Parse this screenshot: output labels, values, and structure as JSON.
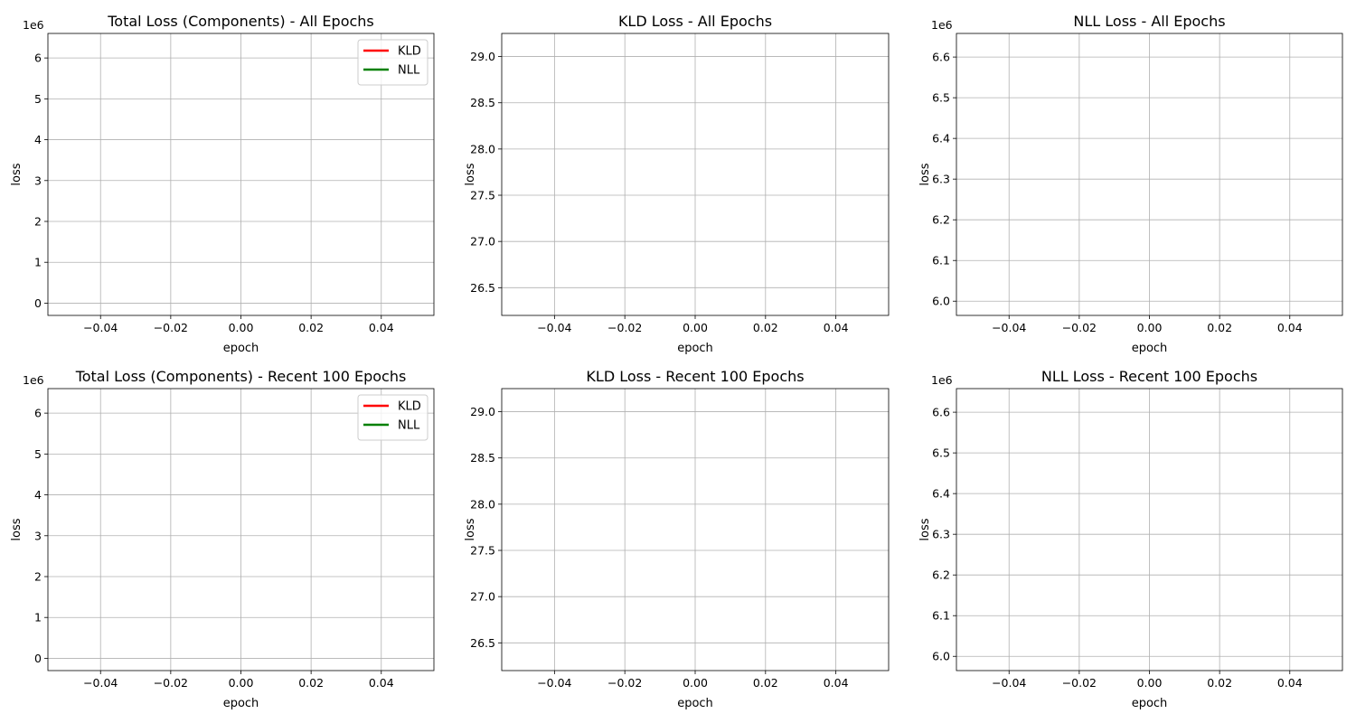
{
  "chart_data": [
    {
      "type": "line",
      "title": "Total Loss (Components) - All Epochs",
      "xlabel": "epoch",
      "ylabel": "loss",
      "xlim": [
        -0.055,
        0.055
      ],
      "ylim": [
        -0.3,
        6.6
      ],
      "x_ticks": [
        -0.04,
        -0.02,
        0.0,
        0.02,
        0.04
      ],
      "x_tick_labels": [
        "−0.04",
        "−0.02",
        "0.00",
        "0.02",
        "0.04"
      ],
      "y_ticks": [
        0,
        1,
        2,
        3,
        4,
        5,
        6
      ],
      "y_tick_labels": [
        "0",
        "1",
        "2",
        "3",
        "4",
        "5",
        "6"
      ],
      "offset_text": "1e6",
      "grid": true,
      "legend": "top-right",
      "series": [
        {
          "name": "KLD",
          "color": "#ff0000",
          "x": [],
          "y": []
        },
        {
          "name": "NLL",
          "color": "#008000",
          "x": [],
          "y": []
        }
      ]
    },
    {
      "type": "line",
      "title": "KLD Loss - All Epochs",
      "xlabel": "epoch",
      "ylabel": "loss",
      "xlim": [
        -0.055,
        0.055
      ],
      "ylim": [
        26.2,
        29.25
      ],
      "x_ticks": [
        -0.04,
        -0.02,
        0.0,
        0.02,
        0.04
      ],
      "x_tick_labels": [
        "−0.04",
        "−0.02",
        "0.00",
        "0.02",
        "0.04"
      ],
      "y_ticks": [
        26.5,
        27.0,
        27.5,
        28.0,
        28.5,
        29.0
      ],
      "y_tick_labels": [
        "26.5",
        "27.0",
        "27.5",
        "28.0",
        "28.5",
        "29.0"
      ],
      "offset_text": "",
      "grid": true,
      "legend": "",
      "series": []
    },
    {
      "type": "line",
      "title": "NLL Loss - All Epochs",
      "xlabel": "epoch",
      "ylabel": "loss",
      "xlim": [
        -0.055,
        0.055
      ],
      "ylim": [
        5.965,
        6.658
      ],
      "x_ticks": [
        -0.04,
        -0.02,
        0.0,
        0.02,
        0.04
      ],
      "x_tick_labels": [
        "−0.04",
        "−0.02",
        "0.00",
        "0.02",
        "0.04"
      ],
      "y_ticks": [
        6.0,
        6.1,
        6.2,
        6.3,
        6.4,
        6.5,
        6.6
      ],
      "y_tick_labels": [
        "6.0",
        "6.1",
        "6.2",
        "6.3",
        "6.4",
        "6.5",
        "6.6"
      ],
      "offset_text": "1e6",
      "grid": true,
      "legend": "",
      "series": []
    },
    {
      "type": "line",
      "title": "Total Loss (Components) - Recent 100 Epochs",
      "xlabel": "epoch",
      "ylabel": "loss",
      "xlim": [
        -0.055,
        0.055
      ],
      "ylim": [
        -0.3,
        6.6
      ],
      "x_ticks": [
        -0.04,
        -0.02,
        0.0,
        0.02,
        0.04
      ],
      "x_tick_labels": [
        "−0.04",
        "−0.02",
        "0.00",
        "0.02",
        "0.04"
      ],
      "y_ticks": [
        0,
        1,
        2,
        3,
        4,
        5,
        6
      ],
      "y_tick_labels": [
        "0",
        "1",
        "2",
        "3",
        "4",
        "5",
        "6"
      ],
      "offset_text": "1e6",
      "grid": true,
      "legend": "top-right",
      "series": [
        {
          "name": "KLD",
          "color": "#ff0000",
          "x": [],
          "y": []
        },
        {
          "name": "NLL",
          "color": "#008000",
          "x": [],
          "y": []
        }
      ]
    },
    {
      "type": "line",
      "title": "KLD Loss - Recent 100 Epochs",
      "xlabel": "epoch",
      "ylabel": "loss",
      "xlim": [
        -0.055,
        0.055
      ],
      "ylim": [
        26.2,
        29.25
      ],
      "x_ticks": [
        -0.04,
        -0.02,
        0.0,
        0.02,
        0.04
      ],
      "x_tick_labels": [
        "−0.04",
        "−0.02",
        "0.00",
        "0.02",
        "0.04"
      ],
      "y_ticks": [
        26.5,
        27.0,
        27.5,
        28.0,
        28.5,
        29.0
      ],
      "y_tick_labels": [
        "26.5",
        "27.0",
        "27.5",
        "28.0",
        "28.5",
        "29.0"
      ],
      "offset_text": "",
      "grid": true,
      "legend": "",
      "series": []
    },
    {
      "type": "line",
      "title": "NLL Loss - Recent 100 Epochs",
      "xlabel": "epoch",
      "ylabel": "loss",
      "xlim": [
        -0.055,
        0.055
      ],
      "ylim": [
        5.965,
        6.658
      ],
      "x_ticks": [
        -0.04,
        -0.02,
        0.0,
        0.02,
        0.04
      ],
      "x_tick_labels": [
        "−0.04",
        "−0.02",
        "0.00",
        "0.02",
        "0.04"
      ],
      "y_ticks": [
        6.0,
        6.1,
        6.2,
        6.3,
        6.4,
        6.5,
        6.6
      ],
      "y_tick_labels": [
        "6.0",
        "6.1",
        "6.2",
        "6.3",
        "6.4",
        "6.5",
        "6.6"
      ],
      "offset_text": "1e6",
      "grid": true,
      "legend": "",
      "series": []
    }
  ]
}
